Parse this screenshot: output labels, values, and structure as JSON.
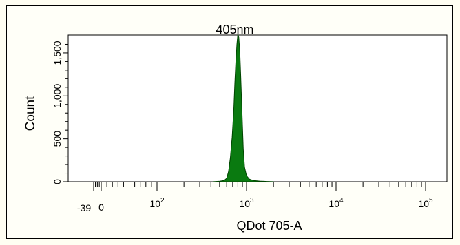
{
  "chart_data": {
    "type": "area",
    "title": "405nm",
    "xlabel": "QDot 705-A",
    "ylabel": "Count",
    "xscale": "biexponential",
    "xlim": [
      -39,
      262144
    ],
    "ylim": [
      0,
      1700
    ],
    "x_tick_labels": [
      {
        "value": -39,
        "label": "-39"
      },
      {
        "value": 0,
        "label": "0"
      },
      {
        "value": 100,
        "base": "10",
        "exp": "2"
      },
      {
        "value": 1000,
        "base": "10",
        "exp": "3"
      },
      {
        "value": 10000,
        "base": "10",
        "exp": "4"
      },
      {
        "value": 100000,
        "base": "10",
        "exp": "5"
      }
    ],
    "y_ticks": [
      {
        "value": 0,
        "label": "0"
      },
      {
        "value": 500,
        "label": "500"
      },
      {
        "value": 1000,
        "label": "1,000"
      },
      {
        "value": 1500,
        "label": "1,500"
      }
    ],
    "x": [
      430,
      500,
      560,
      600,
      630,
      660,
      690,
      720,
      740,
      760,
      780,
      800,
      820,
      840,
      860,
      880,
      900,
      920,
      950,
      1000,
      1080,
      1200,
      1400,
      1700,
      2000
    ],
    "values": [
      2,
      6,
      14,
      40,
      120,
      280,
      520,
      850,
      1150,
      1400,
      1600,
      1720,
      1680,
      1520,
      1250,
      950,
      650,
      380,
      170,
      70,
      30,
      14,
      7,
      3,
      1
    ],
    "fill_color": "#0a7a10",
    "line_color": "#004400",
    "grid": false,
    "legend": "none"
  }
}
